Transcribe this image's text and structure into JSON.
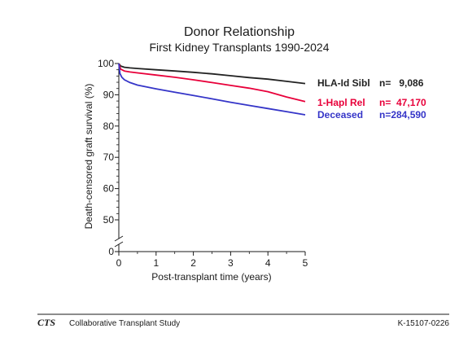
{
  "chart_data": {
    "type": "line",
    "title": "Donor Relationship",
    "subtitle": "First Kidney Transplants 1990-2024",
    "xlabel": "Post-transplant time (years)",
    "ylabel": "Death-censored graft survival (%)",
    "xlim": [
      0,
      5
    ],
    "ylim": [
      0,
      100
    ],
    "y_axis_break": true,
    "x_ticks": [
      0,
      1,
      2,
      3,
      4,
      5
    ],
    "y_ticks": [
      0,
      50,
      60,
      70,
      80,
      90,
      100
    ],
    "grid": false,
    "legend_position": "right",
    "series": [
      {
        "name": "HLA-Id Sibl",
        "n_label": "n=   9,086",
        "color": "#222222",
        "x": [
          0,
          0.05,
          0.15,
          0.3,
          0.5,
          1,
          1.5,
          2,
          2.5,
          3,
          3.5,
          4,
          4.5,
          5
        ],
        "y": [
          100,
          99.2,
          98.8,
          98.6,
          98.4,
          98.0,
          97.6,
          97.2,
          96.7,
          96.1,
          95.5,
          95.0,
          94.3,
          93.6
        ]
      },
      {
        "name": "1-Hapl Rel",
        "n_label": "n=  47,170",
        "color": "#e8003a",
        "x": [
          0,
          0.05,
          0.15,
          0.3,
          0.5,
          1,
          1.5,
          2,
          2.5,
          3,
          3.5,
          4,
          4.5,
          5
        ],
        "y": [
          100,
          98.2,
          97.6,
          97.3,
          97.0,
          96.3,
          95.6,
          94.8,
          93.9,
          93.0,
          92.1,
          91.0,
          89.3,
          87.8
        ]
      },
      {
        "name": "Deceased",
        "n_label": "n=284,590",
        "color": "#3535c8",
        "x": [
          0,
          0.03,
          0.08,
          0.15,
          0.3,
          0.5,
          1,
          1.5,
          2,
          2.5,
          3,
          3.5,
          4,
          4.5,
          5
        ],
        "y": [
          100,
          96.8,
          95.6,
          94.8,
          93.9,
          93.1,
          91.9,
          90.8,
          89.8,
          88.7,
          87.6,
          86.6,
          85.6,
          84.6,
          83.6
        ]
      }
    ]
  },
  "footer": {
    "logo": "CTS",
    "org": "Collaborative Transplant Study",
    "code": "K-15107-0226"
  }
}
